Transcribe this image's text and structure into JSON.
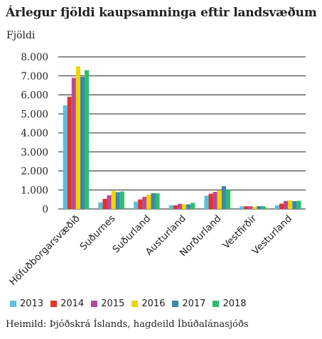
{
  "chart_data": {
    "type": "bar",
    "title": "Árlegur fjöldi kaupsamninga eftir landsvæðum",
    "ylabel": "Fjöldi",
    "xlabel": "",
    "source": "Heimild: Þjóðskrá Íslands, hagdeild Íbúðalánasjóðs",
    "ylim": [
      0,
      8000
    ],
    "yticks": [
      "0",
      "1.000",
      "2.000",
      "3.000",
      "4.000",
      "5.000",
      "6.000",
      "7.000",
      "8.000"
    ],
    "ytick_values": [
      0,
      1000,
      2000,
      3000,
      4000,
      5000,
      6000,
      7000,
      8000
    ],
    "grid": true,
    "legend_position": "bottom",
    "categories": [
      "Höfuðborgarsvæðið",
      "Suðurnes",
      "Suðurland",
      "Austurland",
      "Norðurland",
      "Vestfirðir",
      "Vesturland"
    ],
    "series": [
      {
        "name": "2013",
        "color": "#5bc0de",
        "values": [
          5450,
          350,
          380,
          200,
          700,
          130,
          200
        ]
      },
      {
        "name": "2014",
        "color": "#e0342c",
        "values": [
          5900,
          530,
          500,
          190,
          800,
          140,
          280
        ]
      },
      {
        "name": "2015",
        "color": "#b84a97",
        "values": [
          6900,
          720,
          640,
          270,
          900,
          140,
          420
        ]
      },
      {
        "name": "2016",
        "color": "#f2d400",
        "values": [
          7500,
          950,
          750,
          250,
          980,
          120,
          450
        ]
      },
      {
        "name": "2017",
        "color": "#3d85b0",
        "values": [
          6950,
          880,
          830,
          240,
          1200,
          150,
          410
        ]
      },
      {
        "name": "2018",
        "color": "#2ebd6e",
        "values": [
          7300,
          920,
          820,
          320,
          1000,
          140,
          430
        ]
      }
    ]
  }
}
